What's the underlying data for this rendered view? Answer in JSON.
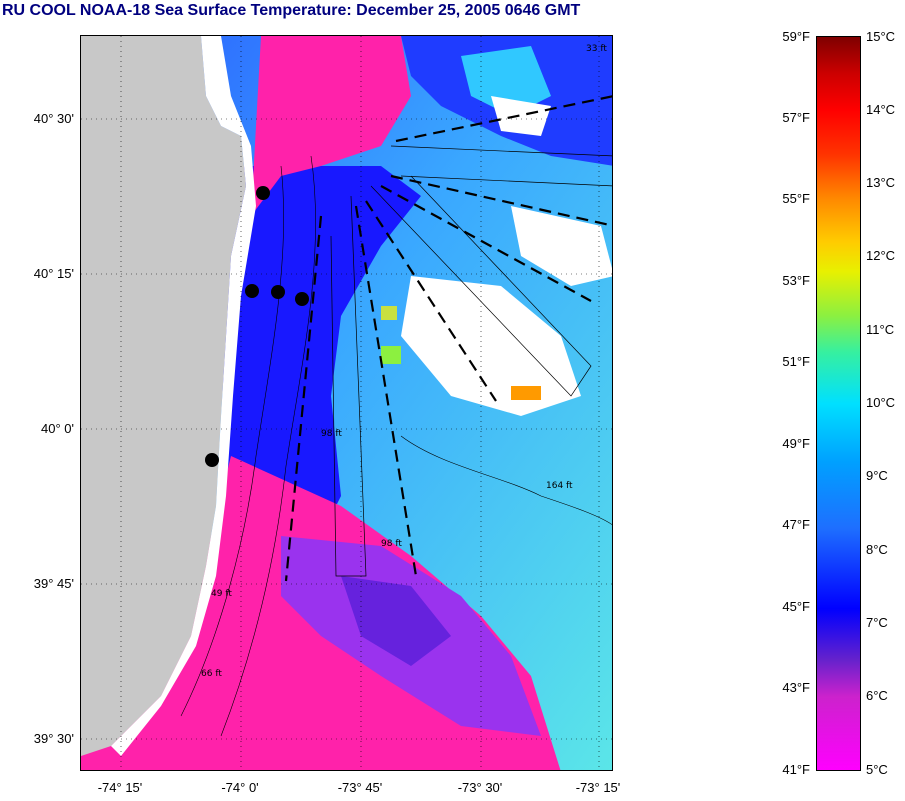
{
  "title": "RU COOL  NOAA-18  Sea Surface Temperature:  December 25, 2005 0646 GMT",
  "map": {
    "lat_labels": [
      "40° 30'",
      "40° 15'",
      "40° 0'",
      "39° 45'",
      "39° 30'"
    ],
    "lon_labels": [
      "-74° 15'",
      "-74° 0'",
      "-73° 45'",
      "-73° 30'",
      "-73° 15'"
    ],
    "depth_labels": [
      "164 ft",
      "98 ft",
      "49 ft",
      "66 ft",
      "98 ft",
      "33 ft"
    ],
    "stations": [
      "station-1",
      "station-2",
      "station-3",
      "station-4",
      "station-5"
    ]
  },
  "colorbar": {
    "fahrenheit": [
      "59°F",
      "57°F",
      "55°F",
      "53°F",
      "51°F",
      "49°F",
      "47°F",
      "45°F",
      "43°F",
      "41°F"
    ],
    "celsius": [
      "15°C",
      "14°C",
      "13°C",
      "12°C",
      "11°C",
      "10°C",
      "9°C",
      "8°C",
      "7°C",
      "6°C",
      "5°C"
    ]
  },
  "colors": {
    "title": "#00007f",
    "land": "#c8c8c8",
    "cloud": "#ffffff",
    "cold_magenta": "#ff22aa",
    "deep_blue": "#1a1aff",
    "mid_cyan": "#40d0ff"
  }
}
